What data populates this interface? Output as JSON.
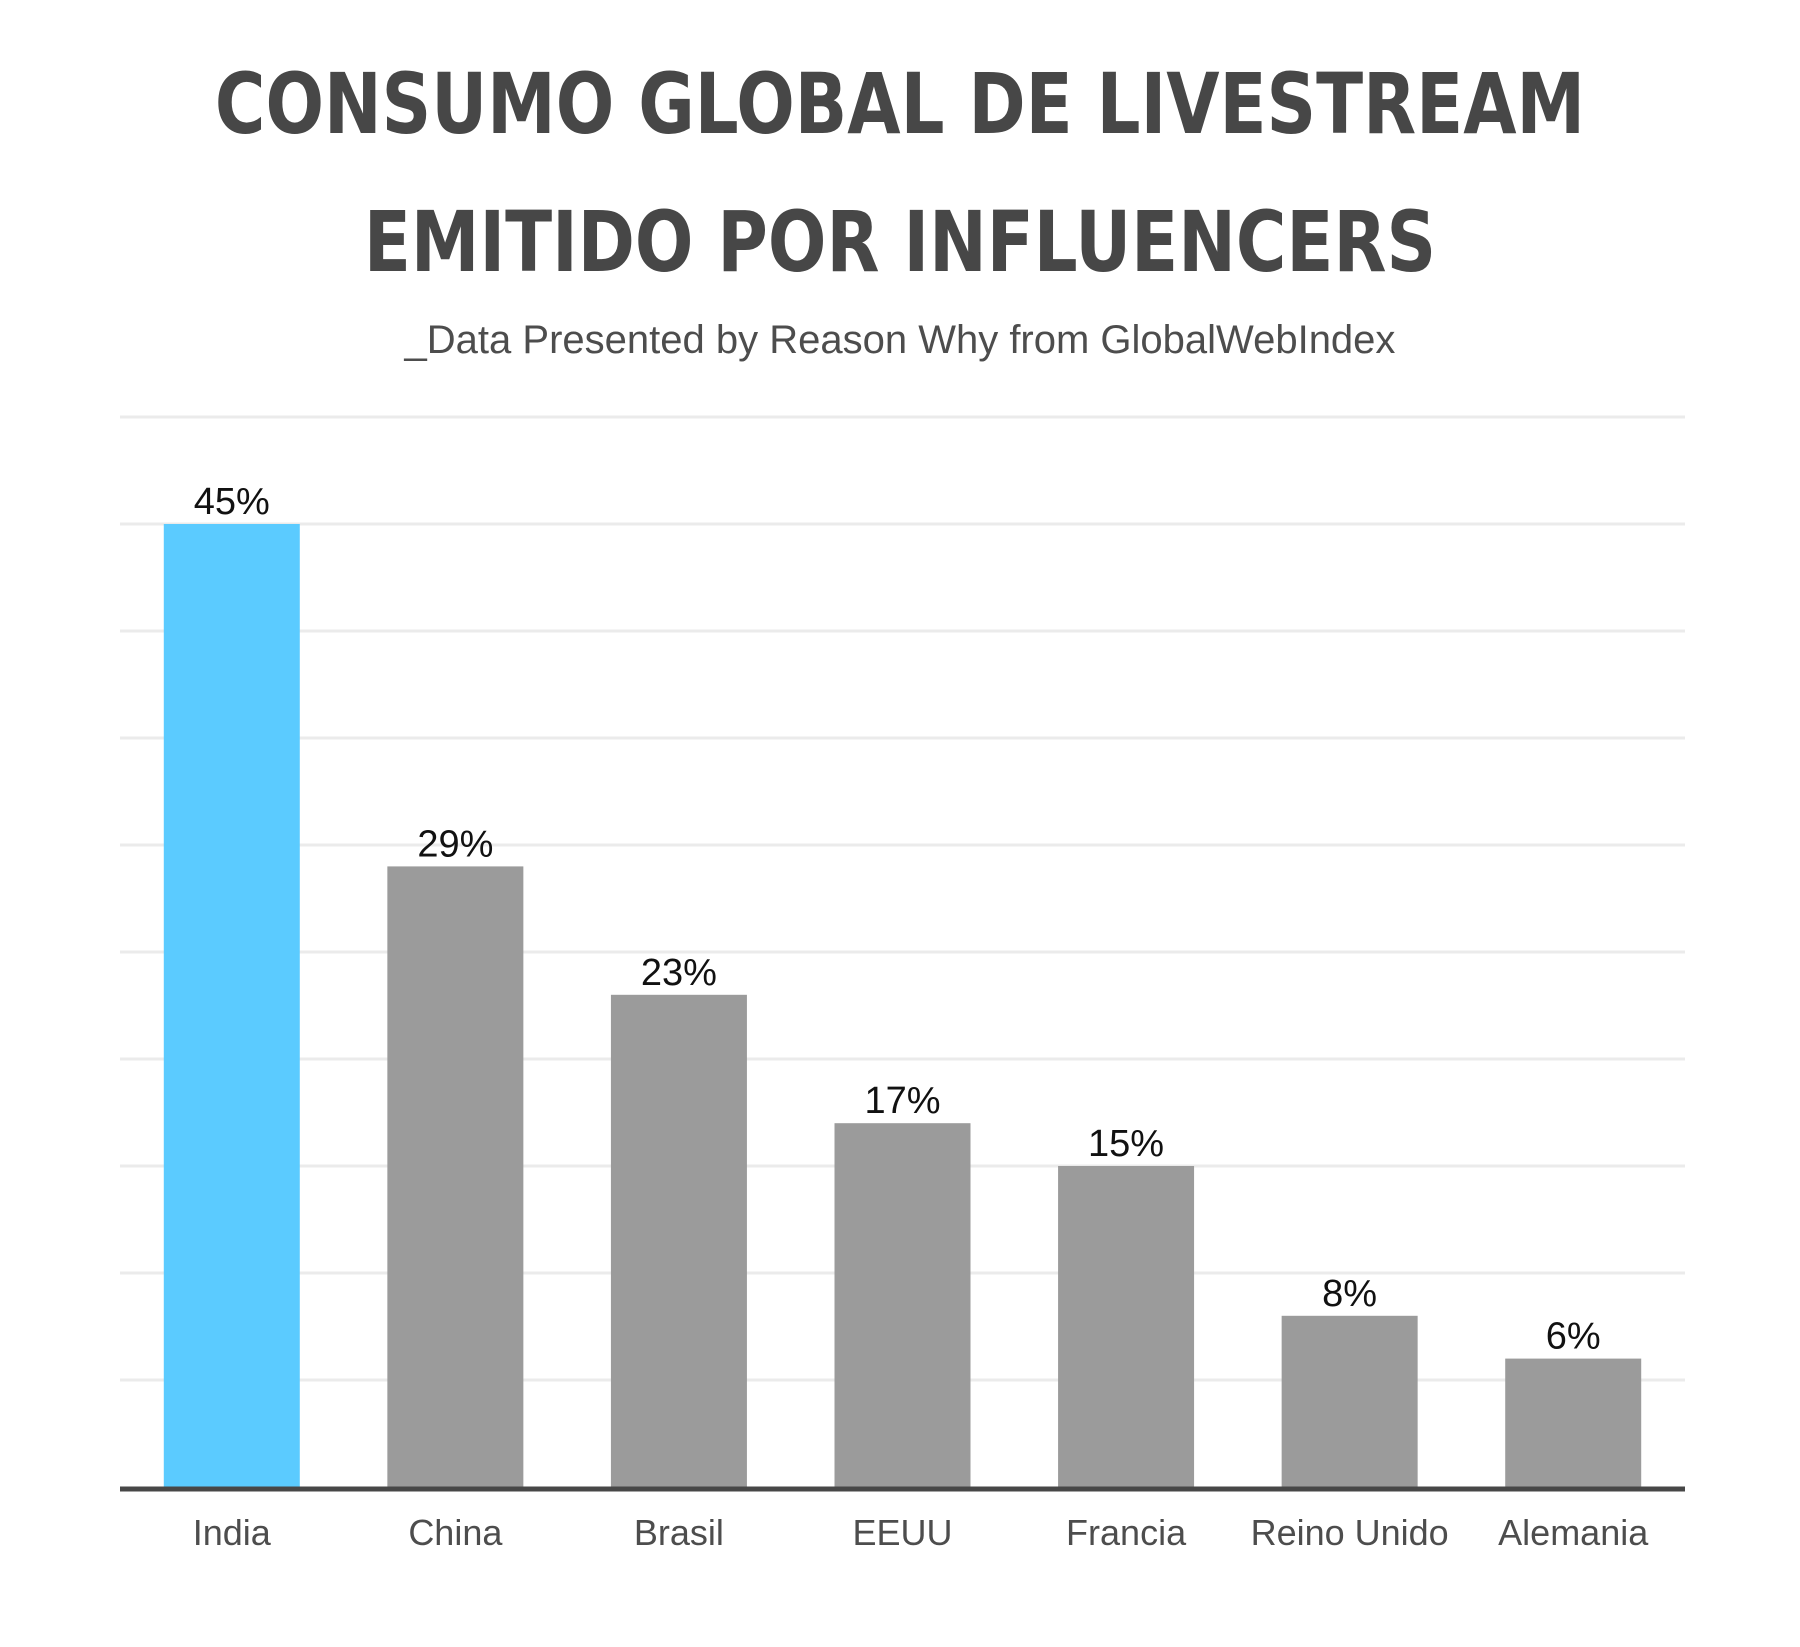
{
  "title_line1": "CONSUMO GLOBAL DE LIVESTREAM",
  "title_line2": "EMITIDO POR INFLUENCERS",
  "subtitle": "_Data Presented by Reason Why from GlobalWebIndex",
  "chart_data": {
    "type": "bar",
    "categories": [
      "India",
      "China",
      "Brasil",
      "EEUU",
      "Francia",
      "Reino Unido",
      "Alemania"
    ],
    "values": [
      45,
      29,
      23,
      17,
      15,
      8,
      6
    ],
    "value_labels": [
      "45%",
      "29%",
      "23%",
      "17%",
      "15%",
      "8%",
      "6%"
    ],
    "ylim": [
      0,
      50
    ],
    "grid": true,
    "colors": {
      "highlight": "#5BCBFF",
      "default": "#9B9B9B",
      "grid": "#EBEBEB",
      "axis": "#474747"
    },
    "highlight_index": 0
  }
}
